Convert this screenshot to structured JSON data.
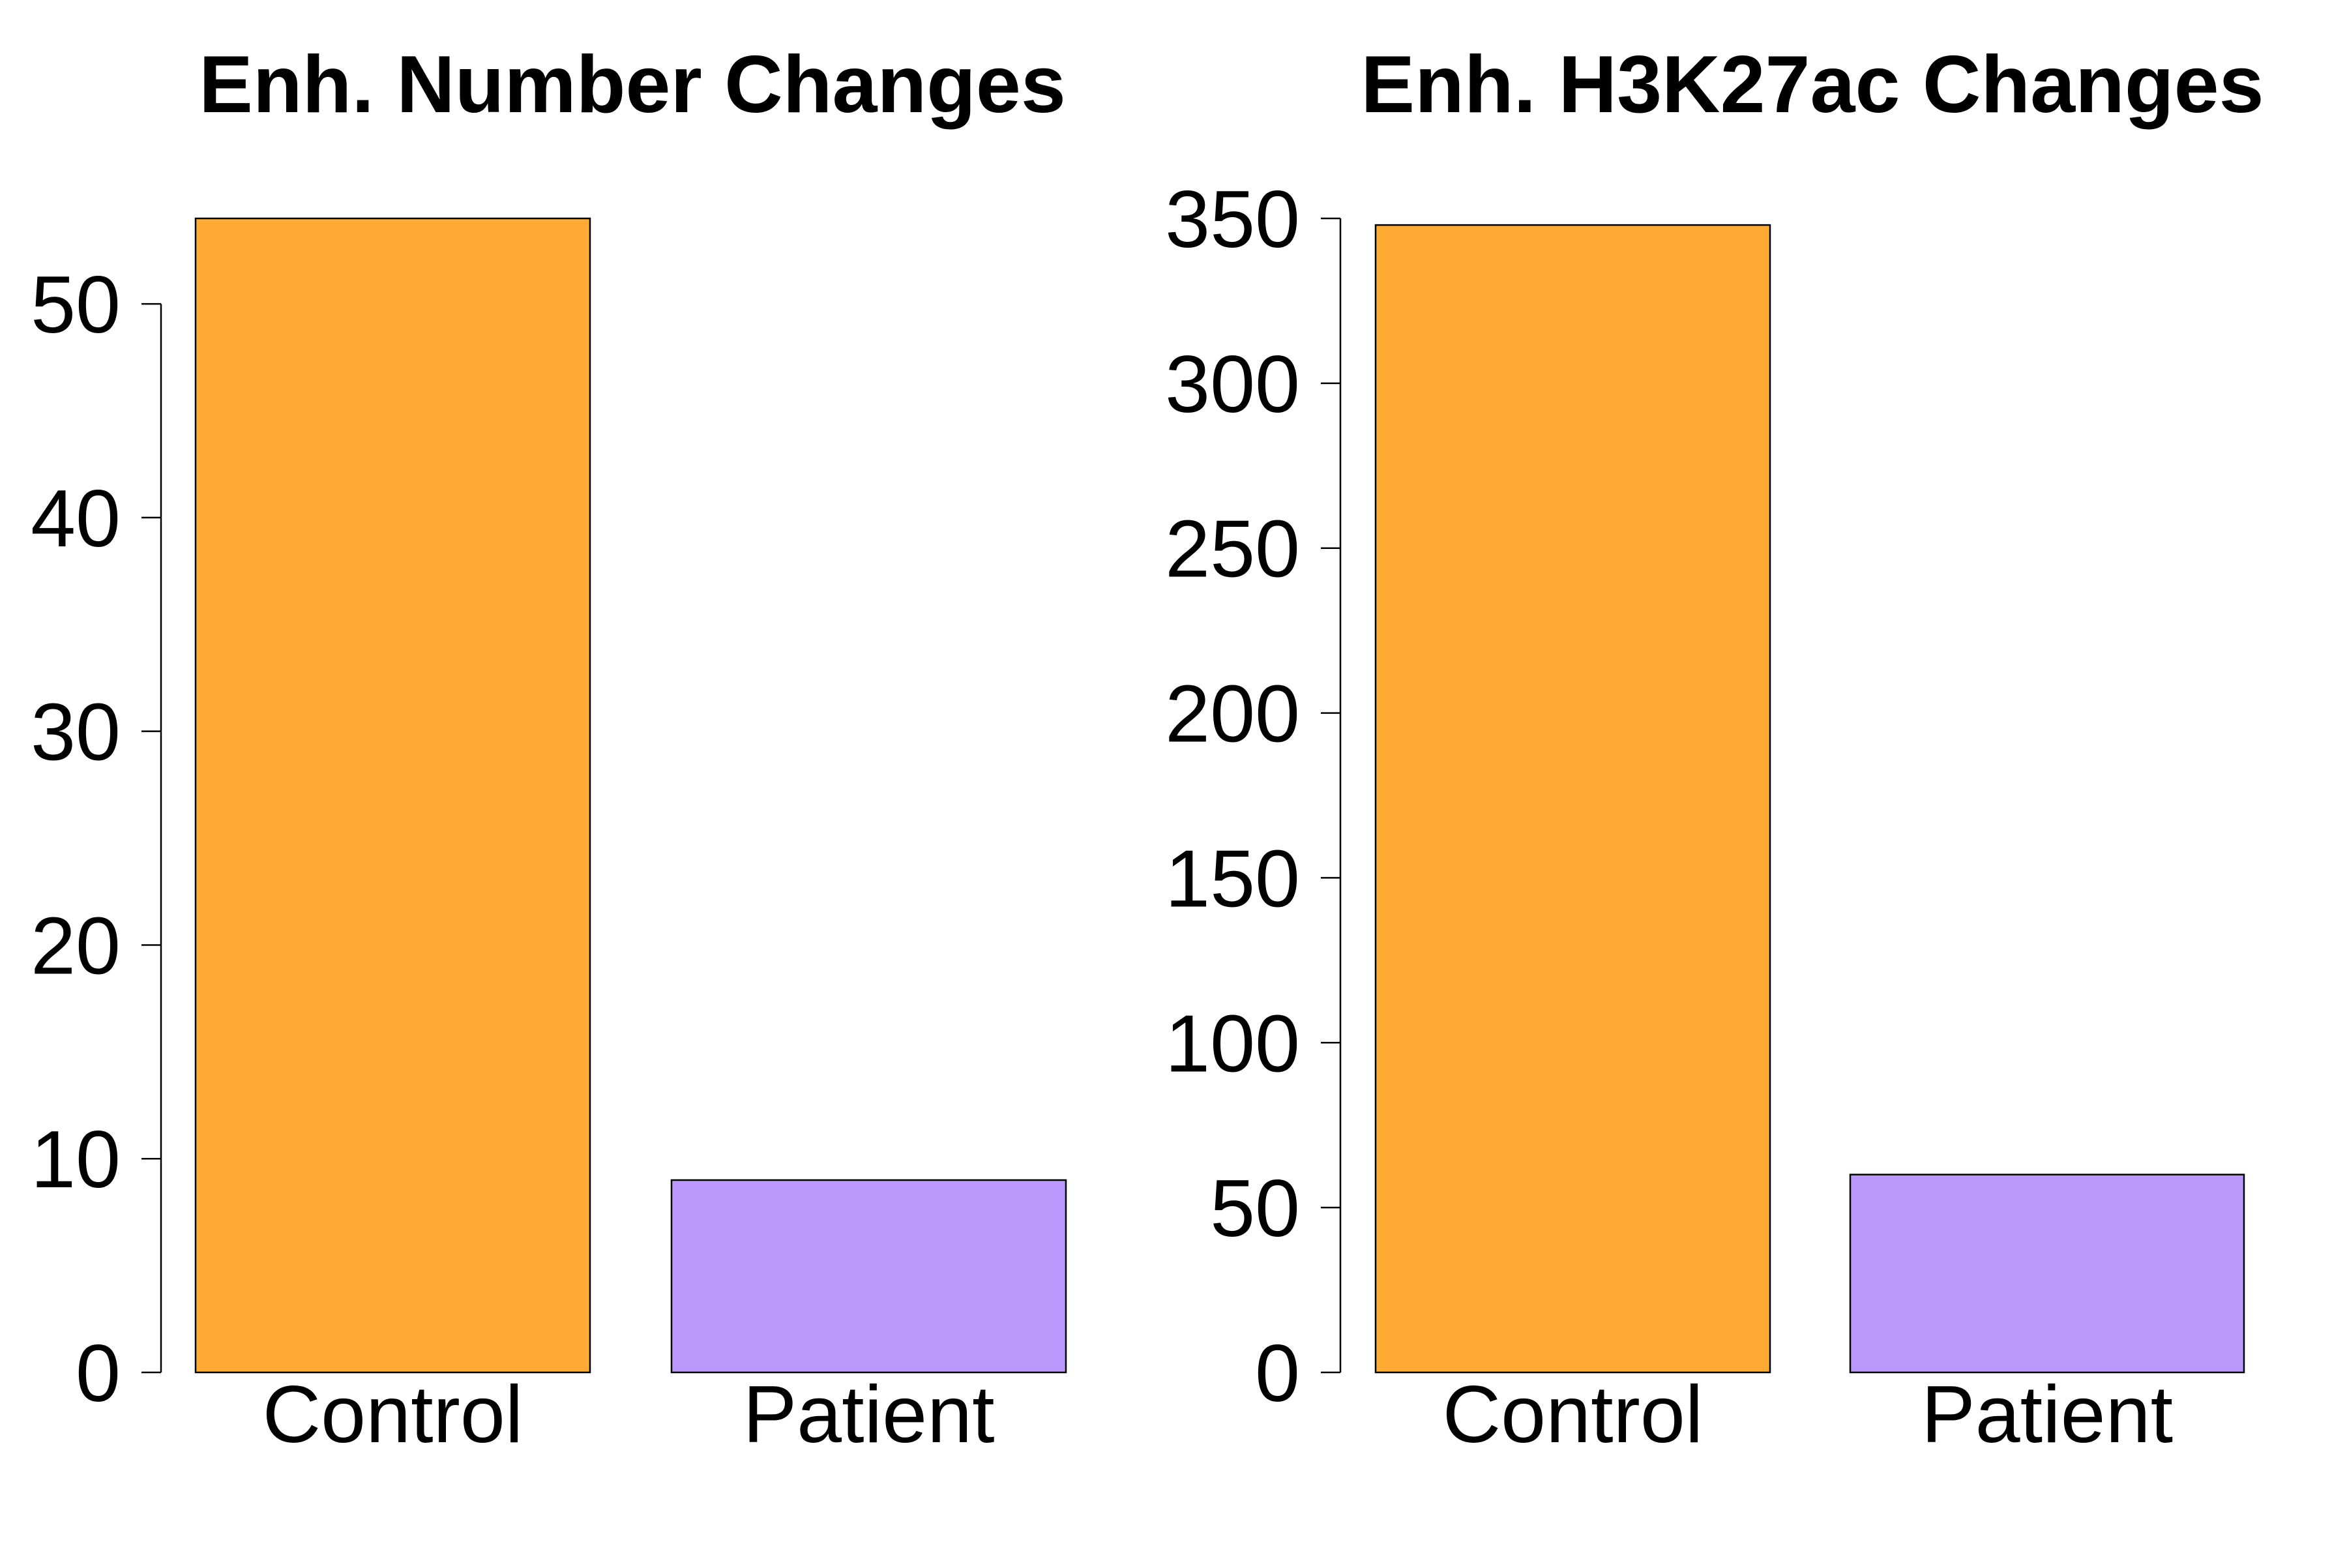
{
  "chart_data": [
    {
      "type": "bar",
      "title": "Enh. Number Changes",
      "xlabel": "",
      "ylabel": "",
      "categories": [
        "Control",
        "Patient"
      ],
      "values": [
        54,
        9
      ],
      "colors": [
        "#FFAB33",
        "#BB99FC"
      ],
      "yticks": [
        0,
        10,
        20,
        30,
        40,
        50
      ],
      "ylim": [
        0,
        50
      ],
      "grid": false
    },
    {
      "type": "bar",
      "title": "Enh. H3K27ac Changes",
      "xlabel": "",
      "ylabel": "",
      "categories": [
        "Control",
        "Patient"
      ],
      "values": [
        348,
        60
      ],
      "colors": [
        "#FFAB33",
        "#BB99FC"
      ],
      "yticks": [
        0,
        50,
        100,
        150,
        200,
        250,
        300,
        350
      ],
      "ylim": [
        0,
        350
      ],
      "grid": false
    }
  ]
}
